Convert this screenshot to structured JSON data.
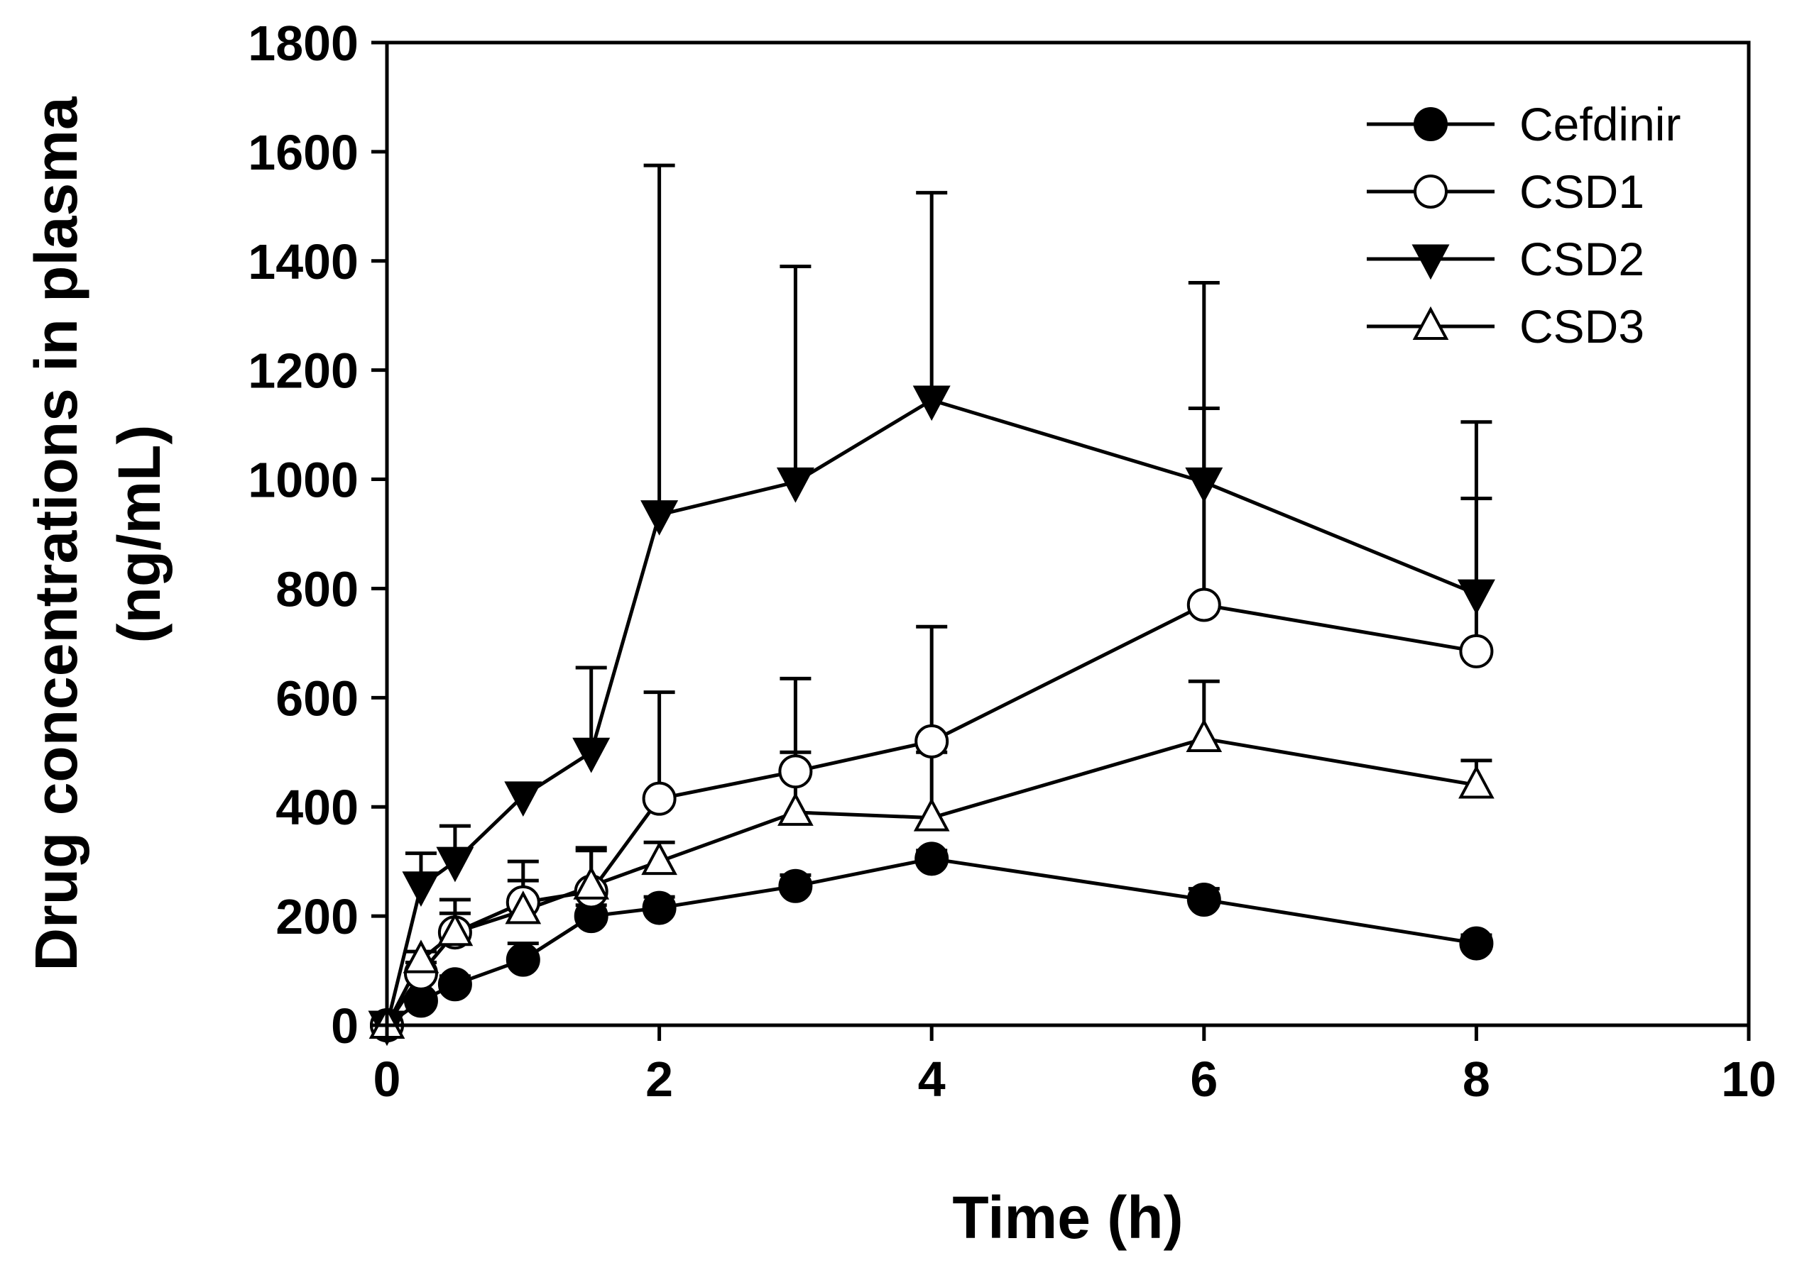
{
  "chart_data": {
    "type": "line",
    "title": "",
    "xlabel": "Time (h)",
    "ylabel_lines": [
      "Drug concentrations in plasma",
      "(ng/mL)"
    ],
    "xlim": [
      0,
      10
    ],
    "ylim": [
      0,
      1800
    ],
    "x_ticks": [
      0,
      2,
      4,
      6,
      8,
      10
    ],
    "y_ticks": [
      0,
      200,
      400,
      600,
      800,
      1000,
      1200,
      1400,
      1600,
      1800
    ],
    "grid": false,
    "legend_position": "top-right",
    "series": [
      {
        "name": "Cefdinir",
        "marker": "circle-filled",
        "x": [
          0,
          0.25,
          0.5,
          1,
          1.5,
          2,
          3,
          4,
          6,
          8
        ],
        "y": [
          0,
          45,
          75,
          120,
          200,
          215,
          255,
          305,
          230,
          150
        ],
        "error": [
          0,
          10,
          15,
          30,
          20,
          20,
          20,
          15,
          20,
          15
        ]
      },
      {
        "name": "CSD1",
        "marker": "circle-open",
        "x": [
          0,
          0.25,
          0.5,
          1,
          1.5,
          2,
          3,
          4,
          6,
          8
        ],
        "y": [
          0,
          95,
          170,
          225,
          245,
          415,
          465,
          520,
          770,
          685
        ],
        "error": [
          0,
          20,
          60,
          75,
          75,
          195,
          170,
          210,
          360,
          280
        ]
      },
      {
        "name": "CSD2",
        "marker": "triangle-down-filled",
        "x": [
          0,
          0.25,
          0.5,
          1,
          1.5,
          2,
          3,
          4,
          6,
          8
        ],
        "y": [
          0,
          255,
          300,
          420,
          500,
          935,
          995,
          1145,
          995,
          790
        ],
        "error": [
          0,
          60,
          65,
          0,
          155,
          640,
          395,
          380,
          365,
          315
        ]
      },
      {
        "name": "CSD3",
        "marker": "triangle-up-open",
        "x": [
          0,
          0.25,
          0.5,
          1,
          1.5,
          2,
          3,
          4,
          6,
          8
        ],
        "y": [
          0,
          120,
          170,
          210,
          255,
          300,
          390,
          380,
          525,
          440
        ],
        "error": [
          0,
          15,
          35,
          55,
          70,
          35,
          110,
          120,
          105,
          45
        ]
      }
    ]
  }
}
